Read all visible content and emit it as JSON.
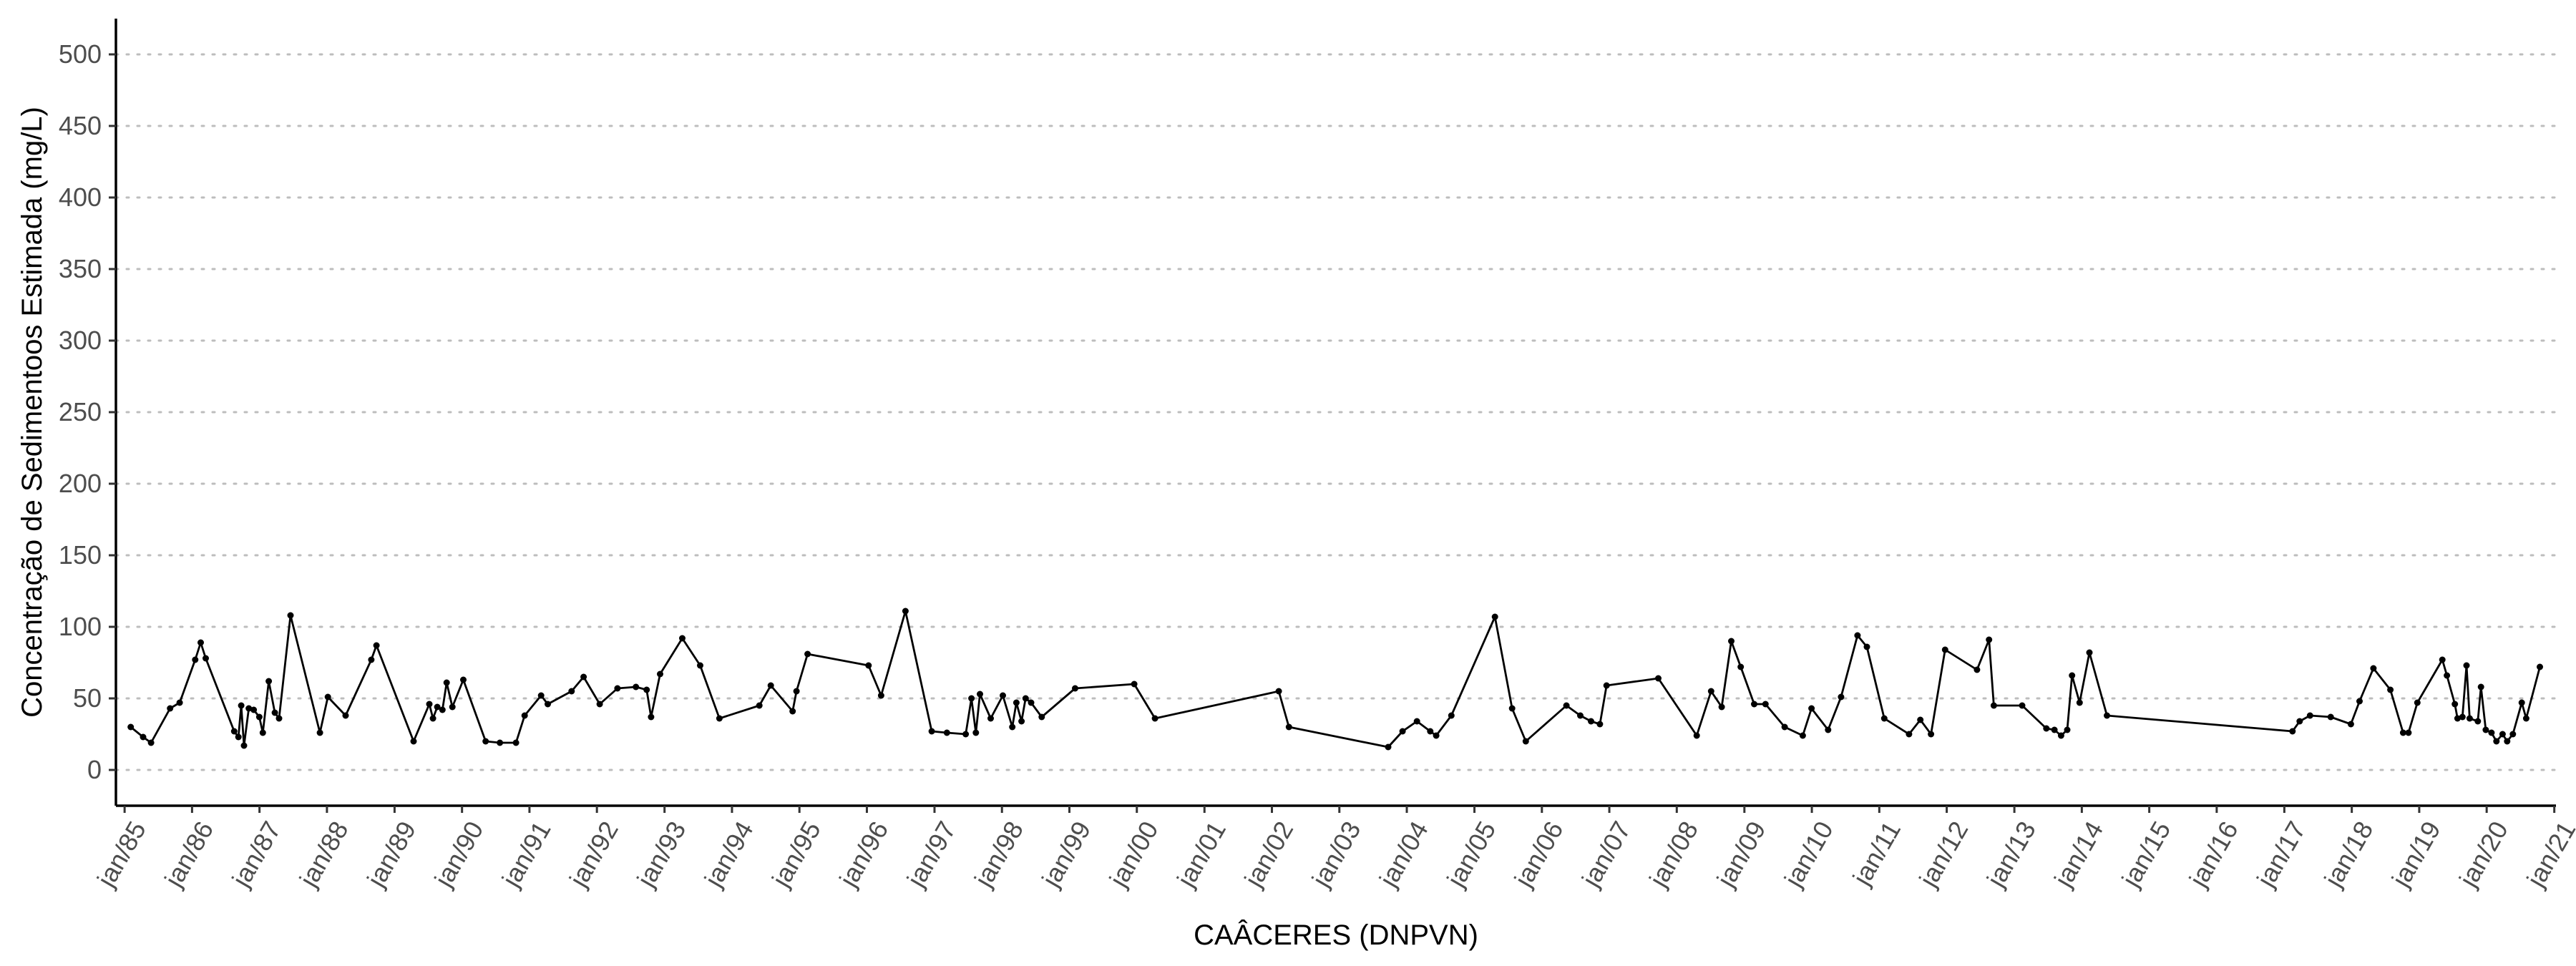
{
  "chart_data": {
    "type": "line",
    "xlabel": "CAÂCERES (DNPVN)",
    "ylabel": "Concentração de Sedimentoos Estimada (mg/L)",
    "ylim": [
      -25,
      525
    ],
    "xlim": [
      "1984-11-15",
      "2021-01-10"
    ],
    "y_ticks": [
      0,
      50,
      100,
      150,
      200,
      250,
      300,
      350,
      400,
      450,
      500
    ],
    "x_ticks": [
      {
        "label": "jan/85",
        "date": "1985-01-01"
      },
      {
        "label": "jan/86",
        "date": "1986-01-01"
      },
      {
        "label": "jan/87",
        "date": "1987-01-01"
      },
      {
        "label": "jan/88",
        "date": "1988-01-01"
      },
      {
        "label": "jan/89",
        "date": "1989-01-01"
      },
      {
        "label": "jan/90",
        "date": "1990-01-01"
      },
      {
        "label": "jan/91",
        "date": "1991-01-01"
      },
      {
        "label": "jan/92",
        "date": "1992-01-01"
      },
      {
        "label": "jan/93",
        "date": "1993-01-01"
      },
      {
        "label": "jan/94",
        "date": "1994-01-01"
      },
      {
        "label": "jan/95",
        "date": "1995-01-01"
      },
      {
        "label": "jan/96",
        "date": "1996-01-01"
      },
      {
        "label": "jan/97",
        "date": "1997-01-01"
      },
      {
        "label": "jan/98",
        "date": "1998-01-01"
      },
      {
        "label": "jan/99",
        "date": "1999-01-01"
      },
      {
        "label": "jan/00",
        "date": "2000-01-01"
      },
      {
        "label": "jan/01",
        "date": "2001-01-01"
      },
      {
        "label": "jan/02",
        "date": "2002-01-01"
      },
      {
        "label": "jan/03",
        "date": "2003-01-01"
      },
      {
        "label": "jan/04",
        "date": "2004-01-01"
      },
      {
        "label": "jan/05",
        "date": "2005-01-01"
      },
      {
        "label": "jan/06",
        "date": "2006-01-01"
      },
      {
        "label": "jan/07",
        "date": "2007-01-01"
      },
      {
        "label": "jan/08",
        "date": "2008-01-01"
      },
      {
        "label": "jan/09",
        "date": "2009-01-01"
      },
      {
        "label": "jan/10",
        "date": "2010-01-01"
      },
      {
        "label": "jan/11",
        "date": "2011-01-01"
      },
      {
        "label": "jan/12",
        "date": "2012-01-01"
      },
      {
        "label": "jan/13",
        "date": "2013-01-01"
      },
      {
        "label": "jan/14",
        "date": "2014-01-01"
      },
      {
        "label": "jan/15",
        "date": "2015-01-01"
      },
      {
        "label": "jan/16",
        "date": "2016-01-01"
      },
      {
        "label": "jan/17",
        "date": "2017-01-01"
      },
      {
        "label": "jan/18",
        "date": "2018-01-01"
      },
      {
        "label": "jan/19",
        "date": "2019-01-01"
      },
      {
        "label": "jan/20",
        "date": "2020-01-01"
      },
      {
        "label": "jan/21",
        "date": "2021-01-01"
      }
    ],
    "grid": {
      "horizontal": true,
      "vertical": false,
      "style": "dotted"
    },
    "legend": "none",
    "line_color": "#000000",
    "points": [
      [
        "1985-02-03",
        30
      ],
      [
        "1985-04-11",
        23
      ],
      [
        "1985-05-24",
        19
      ],
      [
        "1985-09-04",
        43
      ],
      [
        "1985-10-26",
        47
      ],
      [
        "1986-01-18",
        77
      ],
      [
        "1986-02-17",
        89
      ],
      [
        "1986-03-16",
        78
      ],
      [
        "1986-08-17",
        27
      ],
      [
        "1986-09-09",
        23
      ],
      [
        "1986-09-24",
        45
      ],
      [
        "1986-10-09",
        17
      ],
      [
        "1986-11-04",
        43
      ],
      [
        "1986-12-01",
        42
      ],
      [
        "1986-12-31",
        37
      ],
      [
        "1987-01-19",
        26
      ],
      [
        "1987-02-20",
        62
      ],
      [
        "1987-03-25",
        40
      ],
      [
        "1987-04-17",
        36
      ],
      [
        "1987-06-18",
        108
      ],
      [
        "1987-11-24",
        26
      ],
      [
        "1988-01-06",
        51
      ],
      [
        "1988-04-11",
        38
      ],
      [
        "1988-08-28",
        77
      ],
      [
        "1988-09-25",
        87
      ],
      [
        "1989-04-14",
        20
      ],
      [
        "1989-07-08",
        46
      ],
      [
        "1989-07-28",
        36
      ],
      [
        "1989-08-20",
        44
      ],
      [
        "1989-09-17",
        42
      ],
      [
        "1989-10-10",
        61
      ],
      [
        "1989-11-10",
        44
      ],
      [
        "1990-01-08",
        63
      ],
      [
        "1990-05-09",
        20
      ],
      [
        "1990-07-25",
        19
      ],
      [
        "1990-10-20",
        19
      ],
      [
        "1990-12-06",
        38
      ],
      [
        "1991-03-05",
        52
      ],
      [
        "1991-04-10",
        46
      ],
      [
        "1991-08-17",
        55
      ],
      [
        "1991-10-21",
        65
      ],
      [
        "1992-01-16",
        46
      ],
      [
        "1992-04-21",
        57
      ],
      [
        "1992-07-30",
        58
      ],
      [
        "1992-09-26",
        56
      ],
      [
        "1992-10-20",
        37
      ],
      [
        "1992-12-08",
        67
      ],
      [
        "1993-04-07",
        92
      ],
      [
        "1993-07-13",
        73
      ],
      [
        "1993-10-25",
        36
      ],
      [
        "1994-05-29",
        45
      ],
      [
        "1994-07-30",
        59
      ],
      [
        "1994-11-25",
        41
      ],
      [
        "1994-12-16",
        55
      ],
      [
        "1995-02-14",
        81
      ],
      [
        "1996-01-10",
        73
      ],
      [
        "1996-03-18",
        52
      ],
      [
        "1996-07-28",
        111
      ],
      [
        "1996-12-17",
        27
      ],
      [
        "1997-03-09",
        26
      ],
      [
        "1997-06-19",
        25
      ],
      [
        "1997-07-20",
        50
      ],
      [
        "1997-08-13",
        26
      ],
      [
        "1997-09-04",
        53
      ],
      [
        "1997-11-01",
        36
      ],
      [
        "1998-01-06",
        52
      ],
      [
        "1998-02-26",
        30
      ],
      [
        "1998-03-20",
        47
      ],
      [
        "1998-04-17",
        34
      ],
      [
        "1998-05-09",
        50
      ],
      [
        "1998-06-08",
        47
      ],
      [
        "1998-08-04",
        37
      ],
      [
        "1999-02-01",
        57
      ],
      [
        "1999-12-18",
        60
      ],
      [
        "2000-04-08",
        36
      ],
      [
        "2002-02-07",
        55
      ],
      [
        "2002-04-03",
        30
      ],
      [
        "2003-09-22",
        16
      ],
      [
        "2003-12-09",
        27
      ],
      [
        "2004-02-25",
        34
      ],
      [
        "2004-05-07",
        27
      ],
      [
        "2004-06-08",
        24
      ],
      [
        "2004-08-29",
        38
      ],
      [
        "2005-04-22",
        107
      ],
      [
        "2005-07-24",
        43
      ],
      [
        "2005-10-06",
        20
      ],
      [
        "2006-05-14",
        45
      ],
      [
        "2006-07-28",
        38
      ],
      [
        "2006-09-24",
        34
      ],
      [
        "2006-11-11",
        32
      ],
      [
        "2006-12-17",
        59
      ],
      [
        "2007-09-23",
        64
      ],
      [
        "2008-04-18",
        24
      ],
      [
        "2008-07-05",
        55
      ],
      [
        "2008-08-31",
        44
      ],
      [
        "2008-10-22",
        90
      ],
      [
        "2008-12-12",
        72
      ],
      [
        "2009-02-23",
        46
      ],
      [
        "2009-04-25",
        46
      ],
      [
        "2009-08-07",
        30
      ],
      [
        "2009-11-13",
        24
      ],
      [
        "2009-12-30",
        43
      ],
      [
        "2010-03-30",
        28
      ],
      [
        "2010-06-08",
        51
      ],
      [
        "2010-09-05",
        94
      ],
      [
        "2010-10-26",
        86
      ],
      [
        "2011-01-28",
        36
      ],
      [
        "2011-06-11",
        25
      ],
      [
        "2011-08-11",
        35
      ],
      [
        "2011-10-08",
        25
      ],
      [
        "2011-12-23",
        84
      ],
      [
        "2012-06-13",
        70
      ],
      [
        "2012-08-17",
        91
      ],
      [
        "2012-09-12",
        45
      ],
      [
        "2013-02-12",
        45
      ],
      [
        "2013-06-23",
        29
      ],
      [
        "2013-08-06",
        28
      ],
      [
        "2013-09-11",
        24
      ],
      [
        "2013-10-14",
        28
      ],
      [
        "2013-11-09",
        66
      ],
      [
        "2013-12-20",
        47
      ],
      [
        "2014-02-11",
        82
      ],
      [
        "2014-05-17",
        38
      ],
      [
        "2017-02-14",
        27
      ],
      [
        "2017-03-25",
        34
      ],
      [
        "2017-05-20",
        38
      ],
      [
        "2017-09-09",
        37
      ],
      [
        "2017-12-27",
        32
      ],
      [
        "2018-02-12",
        48
      ],
      [
        "2018-04-28",
        71
      ],
      [
        "2018-07-29",
        56
      ],
      [
        "2018-10-06",
        26
      ],
      [
        "2018-11-04",
        26
      ],
      [
        "2018-12-22",
        47
      ],
      [
        "2019-05-06",
        77
      ],
      [
        "2019-05-31",
        66
      ],
      [
        "2019-07-13",
        46
      ],
      [
        "2019-07-27",
        36
      ],
      [
        "2019-08-23",
        37
      ],
      [
        "2019-09-14",
        73
      ],
      [
        "2019-10-01",
        36
      ],
      [
        "2019-11-14",
        34
      ],
      [
        "2019-12-01",
        58
      ],
      [
        "2019-12-27",
        28
      ],
      [
        "2020-01-27",
        26
      ],
      [
        "2020-02-23",
        20
      ],
      [
        "2020-03-27",
        25
      ],
      [
        "2020-04-21",
        20
      ],
      [
        "2020-05-22",
        25
      ],
      [
        "2020-07-09",
        47
      ],
      [
        "2020-08-02",
        36
      ],
      [
        "2020-10-15",
        72
      ]
    ]
  }
}
